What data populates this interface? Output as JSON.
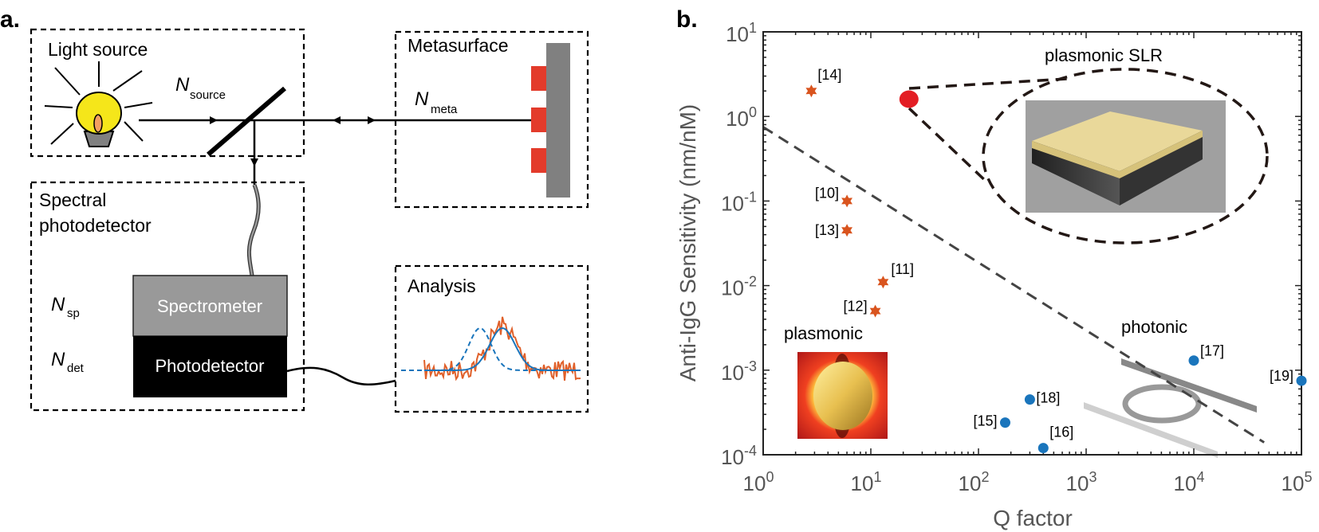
{
  "panel_a": {
    "label": "a.",
    "light_source": {
      "title": "Light source",
      "n_symbol": "N",
      "n_sub": "source"
    },
    "metasurface": {
      "title": "Metasurface",
      "n_symbol": "N",
      "n_sub": "meta"
    },
    "spectral": {
      "title_line1": "Spectral",
      "title_line2": "photodetector",
      "n_sp_symbol": "N",
      "n_sp_sub": "sp",
      "n_det_symbol": "N",
      "n_det_sub": "det",
      "spectrometer": "Spectrometer",
      "photodetector": "Photodetector"
    },
    "analysis": {
      "title": "Analysis"
    },
    "colors": {
      "bulb": "#f5e61a",
      "meta_block": "#e33b2b",
      "meta_substrate": "#808080",
      "noisy": "#e0602a",
      "fit": "#1a75bc"
    }
  },
  "panel_b": {
    "label": "b.",
    "annotations": {
      "slr": "plasmonic SLR",
      "plasmonic": "plasmonic",
      "photonic": "photonic"
    }
  },
  "chart_data": {
    "type": "scatter",
    "xlabel": "Q factor",
    "ylabel": "Anti-IgG Sensitivity (nm/nM)",
    "xscale": "log",
    "yscale": "log",
    "xlim": [
      1,
      100000
    ],
    "ylim": [
      0.0001,
      10
    ],
    "xticks": [
      {
        "base": "10",
        "exp": "0"
      },
      {
        "base": "10",
        "exp": "1"
      },
      {
        "base": "10",
        "exp": "2"
      },
      {
        "base": "10",
        "exp": "3"
      },
      {
        "base": "10",
        "exp": "4"
      },
      {
        "base": "10",
        "exp": "5"
      }
    ],
    "yticks": [
      {
        "base": "10",
        "exp": "1"
      },
      {
        "base": "10",
        "exp": "0"
      },
      {
        "base": "10",
        "exp": "-1"
      },
      {
        "base": "10",
        "exp": "-2"
      },
      {
        "base": "10",
        "exp": "-3"
      },
      {
        "base": "10",
        "exp": "-4"
      }
    ],
    "grid": false,
    "series": [
      {
        "marker": "star",
        "color": "#d9541e",
        "points": [
          {
            "label": "[14]",
            "x": 2.8,
            "y": 2.0
          },
          {
            "label": "[10]",
            "x": 6.0,
            "y": 0.1
          },
          {
            "label": "[13]",
            "x": 6.0,
            "y": 0.045
          },
          {
            "label": "[11]",
            "x": 13,
            "y": 0.011
          },
          {
            "label": "[12]",
            "x": 11,
            "y": 0.005
          }
        ]
      },
      {
        "marker": "circle",
        "color": "#1a75bc",
        "points": [
          {
            "label": "[15]",
            "x": 177,
            "y": 0.00024
          },
          {
            "label": "[18]",
            "x": 300,
            "y": 0.00045
          },
          {
            "label": "[16]",
            "x": 400,
            "y": 0.00012
          },
          {
            "label": "[17]",
            "x": 10000,
            "y": 0.0013
          },
          {
            "label": "[19]",
            "x": 100000,
            "y": 0.00075
          }
        ]
      },
      {
        "marker": "big-circle",
        "color": "#e31e24",
        "points": [
          {
            "label": "",
            "x": 22.6,
            "y": 1.6
          }
        ]
      }
    ],
    "trend_line": {
      "style": "dashed",
      "color": "#444444",
      "from": {
        "x": 1,
        "y": 0.75
      },
      "to": {
        "x": 45000,
        "y": 0.00014
      }
    }
  }
}
